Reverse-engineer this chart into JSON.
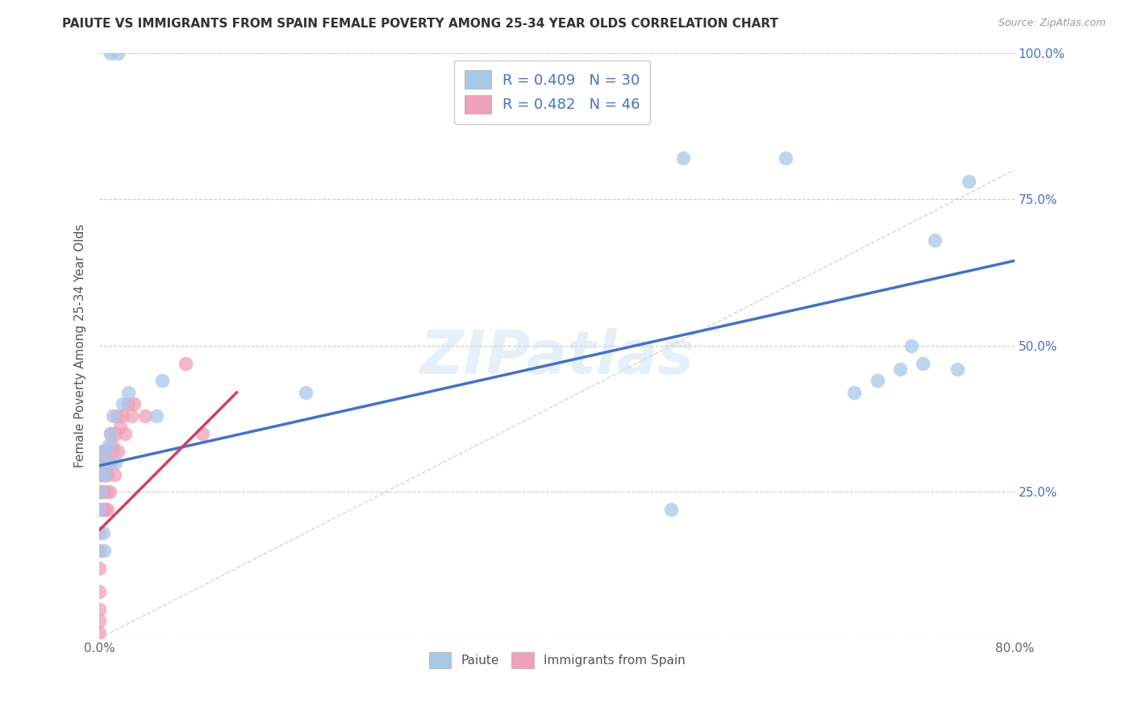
{
  "title": "PAIUTE VS IMMIGRANTS FROM SPAIN FEMALE POVERTY AMONG 25-34 YEAR OLDS CORRELATION CHART",
  "source": "Source: ZipAtlas.com",
  "ylabel": "Female Poverty Among 25-34 Year Olds",
  "xlim": [
    0.0,
    0.8
  ],
  "ylim": [
    0.0,
    1.0
  ],
  "xtick_pos": [
    0.0,
    0.1,
    0.2,
    0.3,
    0.4,
    0.5,
    0.6,
    0.7,
    0.8
  ],
  "xticklabels": [
    "0.0%",
    "",
    "",
    "",
    "",
    "",
    "",
    "",
    "80.0%"
  ],
  "ytick_pos": [
    0.0,
    0.25,
    0.5,
    0.75,
    1.0
  ],
  "yticklabels_right": [
    "",
    "25.0%",
    "50.0%",
    "75.0%",
    "100.0%"
  ],
  "paiute_color": "#a8c8e8",
  "spain_color": "#f0a0b8",
  "trendline_paiute_color": "#4472c4",
  "trendline_spain_color": "#d04060",
  "trendline_diag_color": "#cccccc",
  "R_paiute": 0.409,
  "N_paiute": 30,
  "R_spain": 0.482,
  "N_spain": 46,
  "paiute_x": [
    0.01,
    0.016,
    0.003,
    0.006,
    0.005,
    0.008,
    0.01,
    0.012,
    0.014,
    0.002,
    0.001,
    0.0,
    0.003,
    0.004,
    0.02,
    0.025,
    0.05,
    0.055,
    0.18,
    0.5,
    0.51,
    0.6,
    0.66,
    0.68,
    0.7,
    0.71,
    0.72,
    0.73,
    0.75,
    0.76
  ],
  "paiute_y": [
    1.0,
    1.0,
    0.32,
    0.3,
    0.28,
    0.33,
    0.35,
    0.38,
    0.3,
    0.28,
    0.25,
    0.22,
    0.18,
    0.15,
    0.4,
    0.42,
    0.38,
    0.44,
    0.42,
    0.22,
    0.82,
    0.82,
    0.42,
    0.44,
    0.46,
    0.5,
    0.47,
    0.68,
    0.46,
    0.78
  ],
  "spain_x": [
    0.0,
    0.0,
    0.0,
    0.0,
    0.0,
    0.0,
    0.0,
    0.0,
    0.0,
    0.0,
    0.001,
    0.001,
    0.001,
    0.002,
    0.002,
    0.002,
    0.003,
    0.003,
    0.004,
    0.004,
    0.005,
    0.005,
    0.005,
    0.006,
    0.006,
    0.007,
    0.007,
    0.008,
    0.009,
    0.01,
    0.01,
    0.011,
    0.012,
    0.013,
    0.014,
    0.015,
    0.016,
    0.018,
    0.02,
    0.022,
    0.025,
    0.028,
    0.03,
    0.04,
    0.075,
    0.09
  ],
  "spain_y": [
    0.28,
    0.25,
    0.22,
    0.18,
    0.15,
    0.12,
    0.08,
    0.05,
    0.03,
    0.01,
    0.3,
    0.28,
    0.25,
    0.32,
    0.28,
    0.22,
    0.3,
    0.25,
    0.28,
    0.22,
    0.32,
    0.28,
    0.22,
    0.3,
    0.25,
    0.28,
    0.22,
    0.3,
    0.25,
    0.35,
    0.3,
    0.33,
    0.32,
    0.28,
    0.35,
    0.38,
    0.32,
    0.36,
    0.38,
    0.35,
    0.4,
    0.38,
    0.4,
    0.38,
    0.47,
    0.35
  ],
  "watermark": "ZIPatlas",
  "background_color": "#ffffff",
  "grid_color": "#cccccc",
  "trendline_paiute_x0": 0.0,
  "trendline_paiute_y0": 0.295,
  "trendline_paiute_x1": 0.8,
  "trendline_paiute_y1": 0.645,
  "trendline_spain_x0": 0.0,
  "trendline_spain_y0": 0.185,
  "trendline_spain_x1": 0.12,
  "trendline_spain_y1": 0.42
}
